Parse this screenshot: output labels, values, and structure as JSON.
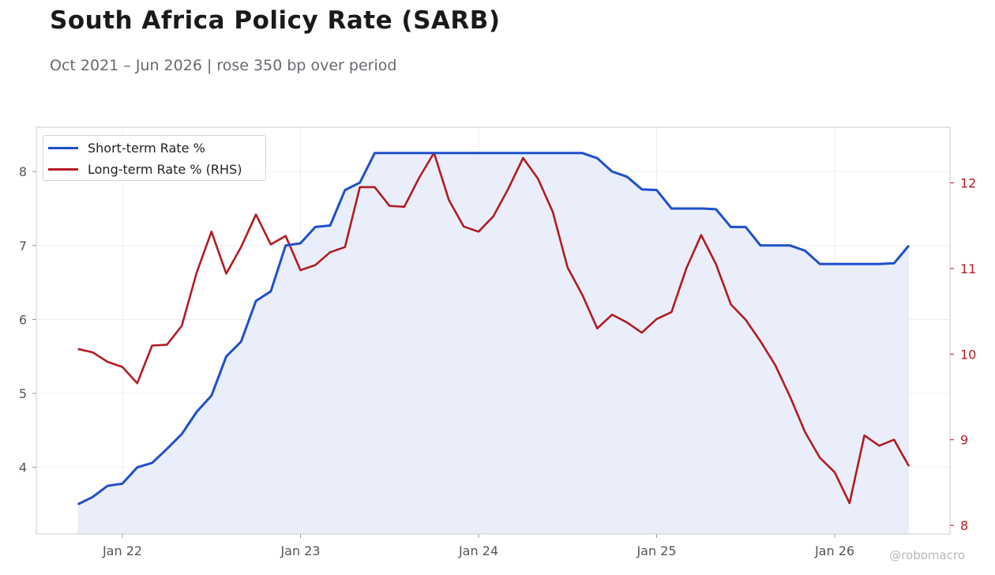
{
  "header": {
    "title": "South Africa Policy Rate (SARB)",
    "subtitle": "Oct 2021 – Jun 2026 | rose 350 bp over period"
  },
  "watermark": "@robomacro",
  "colors": {
    "short": "#1f4fcc",
    "short_fill": "#e9eefa",
    "long": "#b31b22",
    "axis_text": "#555555",
    "rhs_text": "#b31b22",
    "grid": "#eeeeee",
    "frame": "#cccccc"
  },
  "chart_data": {
    "type": "line",
    "title": "South Africa Policy Rate (SARB)",
    "x_ticks": [
      "Jan 22",
      "Jan 23",
      "Jan 24",
      "Jan 25",
      "Jan 26"
    ],
    "y_left_ticks": [
      "4",
      "5",
      "6",
      "7",
      "8"
    ],
    "y_right_ticks": [
      "8",
      "9",
      "10",
      "11",
      "12"
    ],
    "ylim_left": [
      3.1,
      8.6
    ],
    "ylim_right": [
      7.9,
      12.65
    ],
    "grid": true,
    "legend_position": "top-left",
    "x": [
      "2021-10",
      "2021-11",
      "2021-12",
      "2022-01",
      "2022-02",
      "2022-03",
      "2022-04",
      "2022-05",
      "2022-06",
      "2022-07",
      "2022-08",
      "2022-09",
      "2022-10",
      "2022-11",
      "2022-12",
      "2023-01",
      "2023-02",
      "2023-03",
      "2023-04",
      "2023-05",
      "2023-06",
      "2023-07",
      "2023-08",
      "2023-09",
      "2023-10",
      "2023-11",
      "2023-12",
      "2024-01",
      "2024-02",
      "2024-03",
      "2024-04",
      "2024-05",
      "2024-06",
      "2024-07",
      "2024-08",
      "2024-09",
      "2024-10",
      "2024-11",
      "2024-12",
      "2025-01",
      "2025-02",
      "2025-03",
      "2025-04",
      "2025-05",
      "2025-06",
      "2025-07",
      "2025-08",
      "2025-09",
      "2025-10",
      "2025-11",
      "2025-12",
      "2026-01",
      "2026-02",
      "2026-03",
      "2026-04",
      "2026-05",
      "2026-06"
    ],
    "series": [
      {
        "name": "Short-term Rate %",
        "axis": "left",
        "values": [
          3.5,
          3.6,
          3.75,
          3.78,
          4.0,
          4.06,
          4.25,
          4.45,
          4.75,
          4.97,
          5.5,
          5.7,
          6.25,
          6.38,
          7.0,
          7.03,
          7.25,
          7.27,
          7.75,
          7.85,
          8.25,
          8.25,
          8.25,
          8.25,
          8.25,
          8.25,
          8.25,
          8.25,
          8.25,
          8.25,
          8.25,
          8.25,
          8.25,
          8.25,
          8.25,
          8.18,
          8.0,
          7.93,
          7.76,
          7.75,
          7.5,
          7.5,
          7.5,
          7.49,
          7.25,
          7.25,
          7.0,
          7.0,
          7.0,
          6.93,
          6.75,
          6.75,
          6.75,
          6.75,
          6.75,
          6.76,
          7.0
        ]
      },
      {
        "name": "Long-term Rate % (RHS)",
        "axis": "right",
        "values": [
          10.06,
          10.02,
          9.91,
          9.85,
          9.66,
          10.1,
          10.11,
          10.33,
          10.95,
          11.43,
          10.94,
          11.25,
          11.63,
          11.28,
          11.38,
          10.98,
          11.04,
          11.19,
          11.25,
          11.95,
          11.95,
          11.73,
          11.72,
          12.06,
          12.35,
          11.8,
          11.49,
          11.43,
          11.61,
          11.93,
          12.29,
          12.05,
          11.66,
          11.01,
          10.69,
          10.3,
          10.46,
          10.37,
          10.25,
          10.41,
          10.49,
          11.0,
          11.39,
          11.05,
          10.58,
          10.4,
          10.15,
          9.87,
          9.5,
          9.09,
          8.79,
          8.62,
          8.26,
          9.05,
          8.93,
          9.0,
          8.69
        ]
      }
    ]
  }
}
